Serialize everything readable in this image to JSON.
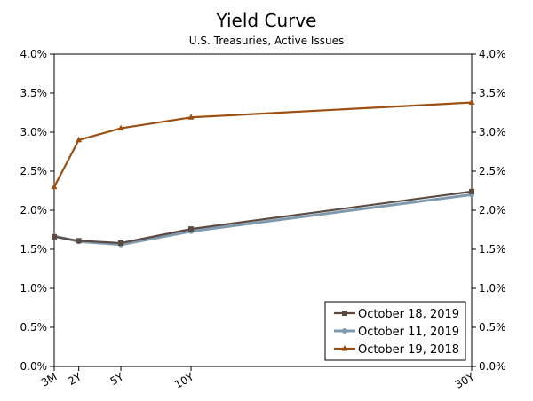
{
  "chart_data": {
    "type": "line",
    "title": "Yield Curve",
    "subtitle": "U.S. Treasuries, Active Issues",
    "xlabel": "",
    "ylabel": "",
    "x_ticks": [
      {
        "label": "3M",
        "x": 0.25
      },
      {
        "label": "2Y",
        "x": 2
      },
      {
        "label": "5Y",
        "x": 5
      },
      {
        "label": "10Y",
        "x": 10
      },
      {
        "label": "30Y",
        "x": 30
      }
    ],
    "x": [
      0.25,
      2,
      5,
      10,
      30
    ],
    "xlim": [
      0.25,
      30
    ],
    "ylim": [
      0,
      4
    ],
    "y_ticks": [
      "0.0%",
      "0.5%",
      "1.0%",
      "1.5%",
      "2.0%",
      "2.5%",
      "3.0%",
      "3.5%",
      "4.0%"
    ],
    "grid": false,
    "legend_position": "bottom-right",
    "series": [
      {
        "name": "October 18, 2019",
        "color": "#5a4a42",
        "marker": "square",
        "values": [
          1.66,
          1.61,
          1.58,
          1.76,
          2.24
        ]
      },
      {
        "name": "October 11, 2019",
        "color": "#7f9aaf",
        "marker": "circle",
        "values": [
          1.67,
          1.6,
          1.56,
          1.73,
          2.2
        ]
      },
      {
        "name": "October 19, 2018",
        "color": "#9c4f10",
        "marker": "triangle",
        "values": [
          2.3,
          2.9,
          3.05,
          3.19,
          3.38
        ]
      }
    ]
  }
}
